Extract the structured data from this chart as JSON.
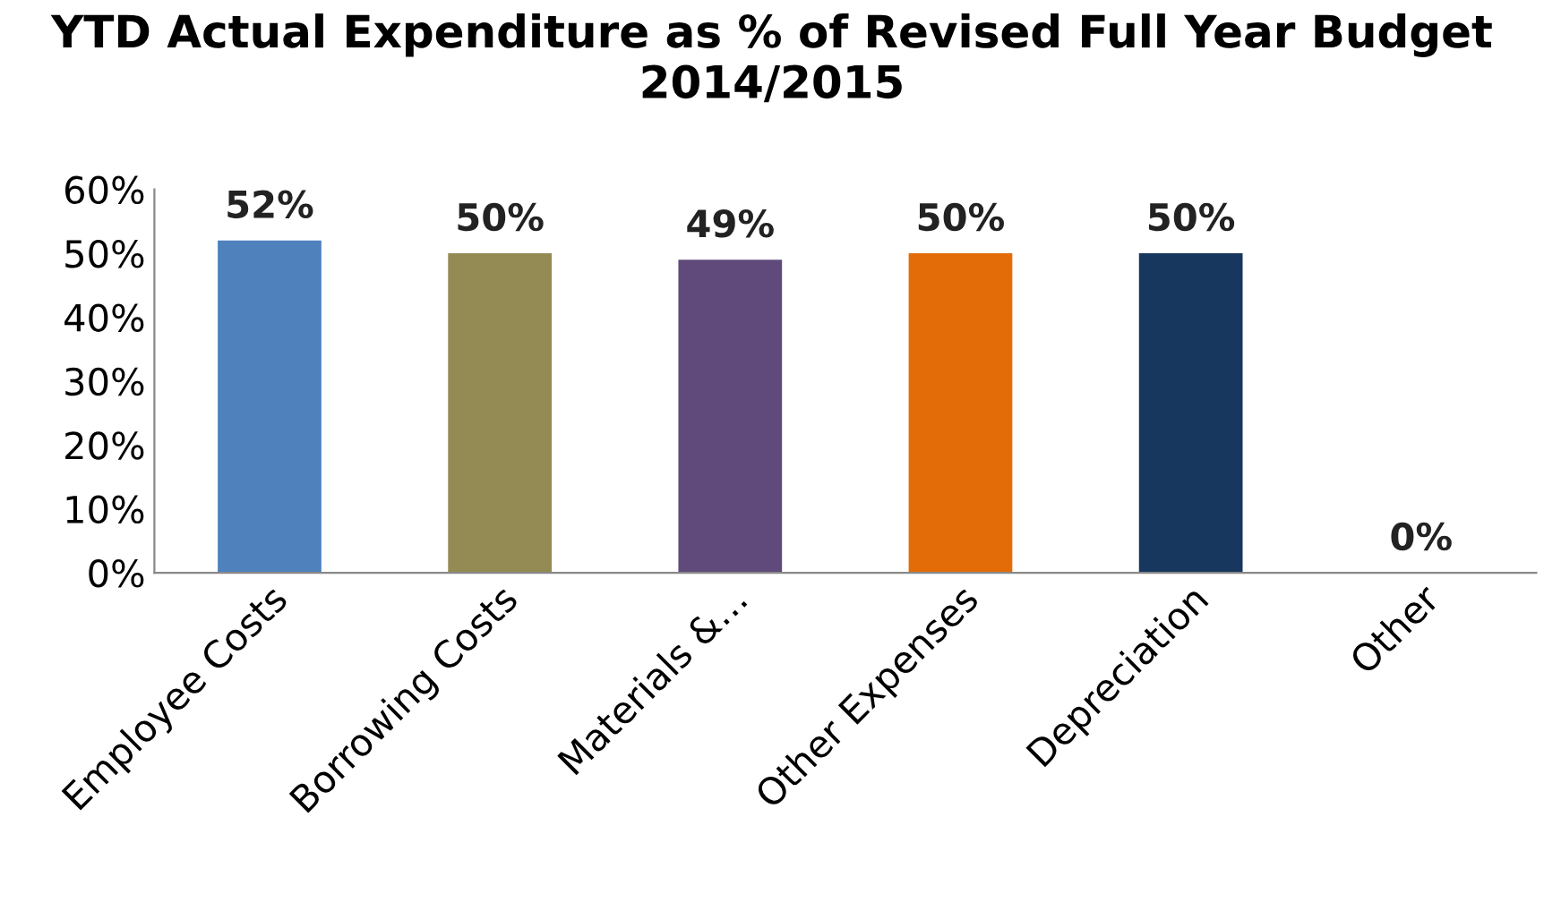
{
  "chart_data": {
    "type": "bar",
    "title": "YTD Actual Expenditure as % of Revised Full Year Budget 2014/2015",
    "categories": [
      "Employee Costs",
      "Borrowing Costs",
      "Materials &…",
      "Other Expenses",
      "Depreciation",
      "Other"
    ],
    "values": [
      52,
      50,
      49,
      50,
      50,
      0
    ],
    "colors": [
      "#4f81bd",
      "#948a54",
      "#604a7b",
      "#e36c09",
      "#17375e",
      "#4bacc6"
    ],
    "value_labels": [
      "52%",
      "50%",
      "49%",
      "50%",
      "50%",
      "0%"
    ],
    "ylim": [
      0,
      60
    ],
    "yticks": [
      {
        "value": 0,
        "label": "0%"
      },
      {
        "value": 10,
        "label": "10%"
      },
      {
        "value": 20,
        "label": "20%"
      },
      {
        "value": 30,
        "label": "30%"
      },
      {
        "value": 40,
        "label": "40%"
      },
      {
        "value": 50,
        "label": "50%"
      },
      {
        "value": 60,
        "label": "60%"
      }
    ],
    "grid": false,
    "legend": false
  }
}
